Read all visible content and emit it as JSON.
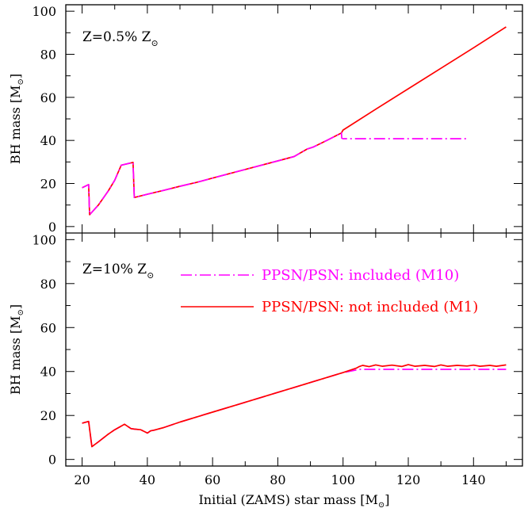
{
  "chart_data": [
    {
      "type": "line",
      "panel": "top",
      "label": "Z=0.5% Z",
      "label_symbol": "⊙",
      "xlabel": "",
      "ylabel": "BH mass [M",
      "ylabel_symbol": "⊙",
      "ylabel_tail": "]",
      "xlim": [
        15,
        155
      ],
      "ylim": [
        -3,
        103
      ],
      "xticks": [
        20,
        40,
        60,
        80,
        100,
        120,
        140
      ],
      "yticks": [
        0,
        20,
        40,
        60,
        80,
        100
      ],
      "series": [
        {
          "ref": "M1",
          "color": "#ff0000",
          "style": "solid",
          "x": [
            20,
            22,
            22.3,
            25,
            28,
            30,
            32,
            35.6,
            36,
            40,
            45,
            50,
            55,
            60,
            70,
            80,
            85,
            89,
            90,
            91,
            95,
            99.5,
            100,
            110,
            120,
            130,
            140,
            150
          ],
          "y": [
            18,
            19.5,
            5.5,
            10,
            16.5,
            21.5,
            28.5,
            29.8,
            13.5,
            15,
            16.8,
            18.7,
            20.5,
            22.5,
            26.5,
            30.5,
            32.5,
            36,
            36.5,
            37,
            40,
            43.5,
            44.8,
            54.5,
            64,
            73.5,
            83,
            92.7
          ]
        },
        {
          "ref": "M10",
          "color": "#ff00ff",
          "style": "dashdot",
          "x": [
            20,
            22,
            22.3,
            25,
            28,
            30,
            32,
            35.6,
            36,
            40,
            45,
            50,
            55,
            60,
            70,
            80,
            85,
            89,
            90,
            91,
            95,
            99.5,
            99.6,
            100,
            110,
            120,
            130,
            138
          ],
          "y": [
            18,
            19.5,
            5.5,
            10,
            16.5,
            21.5,
            28.5,
            29.8,
            13.5,
            15,
            16.8,
            18.7,
            20.5,
            22.5,
            26.5,
            30.5,
            32.5,
            36,
            36.5,
            37,
            40,
            43.5,
            41,
            40.8,
            40.8,
            40.8,
            40.8,
            40.8
          ]
        }
      ]
    },
    {
      "type": "line",
      "panel": "bottom",
      "label": "Z=10% Z",
      "label_symbol": "⊙",
      "xlabel": "Initial (ZAMS) star mass [M",
      "xlabel_symbol": "⊙",
      "xlabel_tail": "]",
      "ylabel": "BH mass [M",
      "ylabel_symbol": "⊙",
      "ylabel_tail": "]",
      "xlim": [
        15,
        155
      ],
      "ylim": [
        -3,
        103
      ],
      "xticks": [
        20,
        40,
        60,
        80,
        100,
        120,
        140
      ],
      "yticks": [
        0,
        20,
        40,
        60,
        80,
        100
      ],
      "legend": [
        {
          "text": "PPSN/PSN: included (M10)",
          "color": "#ff00ff",
          "style": "dashdot"
        },
        {
          "text": "PPSN/PSN: not included (M1)",
          "color": "#ff0000",
          "style": "solid"
        }
      ],
      "series": [
        {
          "ref": "M10",
          "color": "#ff00ff",
          "style": "dashdot",
          "x": [
            20,
            22,
            23,
            25,
            28,
            30,
            33,
            34,
            35,
            36,
            38,
            40,
            41,
            42,
            45,
            50,
            60,
            70,
            80,
            90,
            100,
            105,
            110,
            120,
            130,
            140,
            150
          ],
          "y": [
            16.5,
            17.3,
            5.8,
            8,
            11.5,
            13.5,
            16,
            15,
            14,
            13.8,
            13.5,
            12,
            13,
            13.3,
            14.5,
            17,
            21.5,
            26,
            30.5,
            35,
            39.5,
            41,
            41,
            41,
            41,
            41,
            41
          ]
        },
        {
          "ref": "M1",
          "color": "#ff0000",
          "style": "solid",
          "x": [
            20,
            22,
            23,
            25,
            28,
            30,
            33,
            34,
            35,
            36,
            38,
            40,
            41,
            42,
            45,
            50,
            60,
            70,
            80,
            90,
            100,
            104,
            105,
            106,
            108,
            110,
            112,
            115,
            118,
            120,
            122,
            125,
            128,
            130,
            132,
            135,
            138,
            140,
            142,
            145,
            147,
            150
          ],
          "y": [
            16.5,
            17.3,
            5.8,
            8,
            11.5,
            13.5,
            16,
            15,
            14,
            13.8,
            13.5,
            12,
            13,
            13.3,
            14.5,
            17,
            21.5,
            26,
            30.5,
            35,
            39.5,
            41.5,
            42.3,
            42.8,
            42.2,
            43,
            42.4,
            42.9,
            42.3,
            43.1,
            42.4,
            42.8,
            42.3,
            43,
            42.4,
            42.8,
            42.5,
            42.9,
            42.4,
            42.8,
            42.4,
            43
          ]
        }
      ]
    }
  ]
}
